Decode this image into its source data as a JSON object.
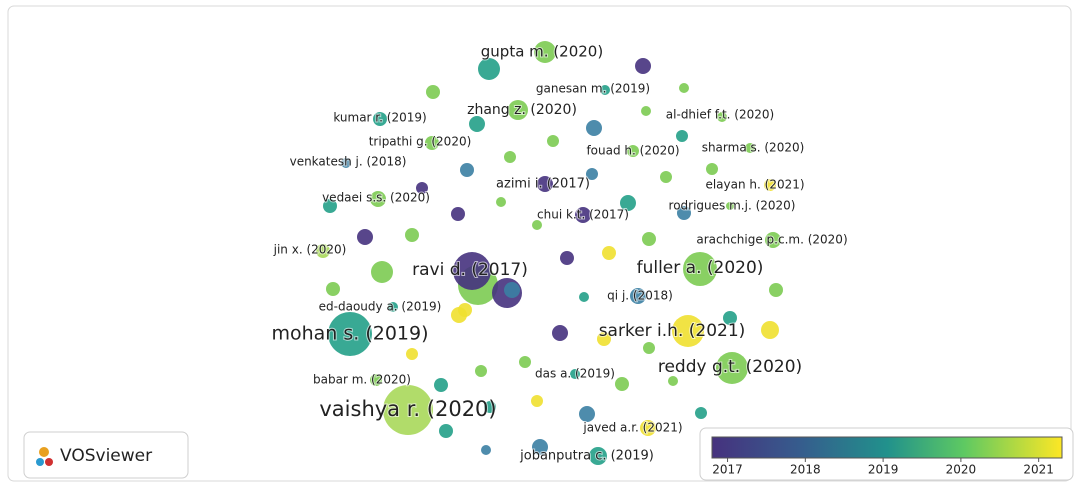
{
  "nodes": [
    {
      "label": "gupta m. (2020)"
    },
    {
      "label": "ganesan m. (2019)"
    },
    {
      "label": "zhang z. (2020)"
    },
    {
      "label": "al-dhief f.t. (2020)"
    },
    {
      "label": "kumar r. (2019)"
    },
    {
      "label": "tripathi g. (2020)"
    },
    {
      "label": "fouad h. (2020)"
    },
    {
      "label": "sharma s. (2020)"
    },
    {
      "label": "venkatesh j. (2018)"
    },
    {
      "label": "azimi i. (2017)"
    },
    {
      "label": "elayan h. (2021)"
    },
    {
      "label": "vedaei s.s. (2020)"
    },
    {
      "label": "rodrigues m.j. (2020)"
    },
    {
      "label": "chui k.t. (2017)"
    },
    {
      "label": "arachchige p.c.m. (2020)"
    },
    {
      "label": "jin x. (2020)"
    },
    {
      "label": "ravi d. (2017)"
    },
    {
      "label": "fuller a. (2020)"
    },
    {
      "label": "qi j. (2018)"
    },
    {
      "label": "ed-daoudy a. (2019)"
    },
    {
      "label": "mohan s. (2019)"
    },
    {
      "label": "sarker i.h. (2021)"
    },
    {
      "label": "reddy g.t. (2020)"
    },
    {
      "label": "das a. (2019)"
    },
    {
      "label": "babar m. (2020)"
    },
    {
      "label": "vaishya r. (2020)"
    },
    {
      "label": "javed a.r. (2021)"
    },
    {
      "label": "jobanputra c. (2019)"
    }
  ],
  "legend": {
    "ticks": [
      2017,
      2018,
      2019,
      2020,
      2021
    ],
    "range": [
      2016.8,
      2021.3
    ]
  },
  "logo": "VOSviewer"
}
